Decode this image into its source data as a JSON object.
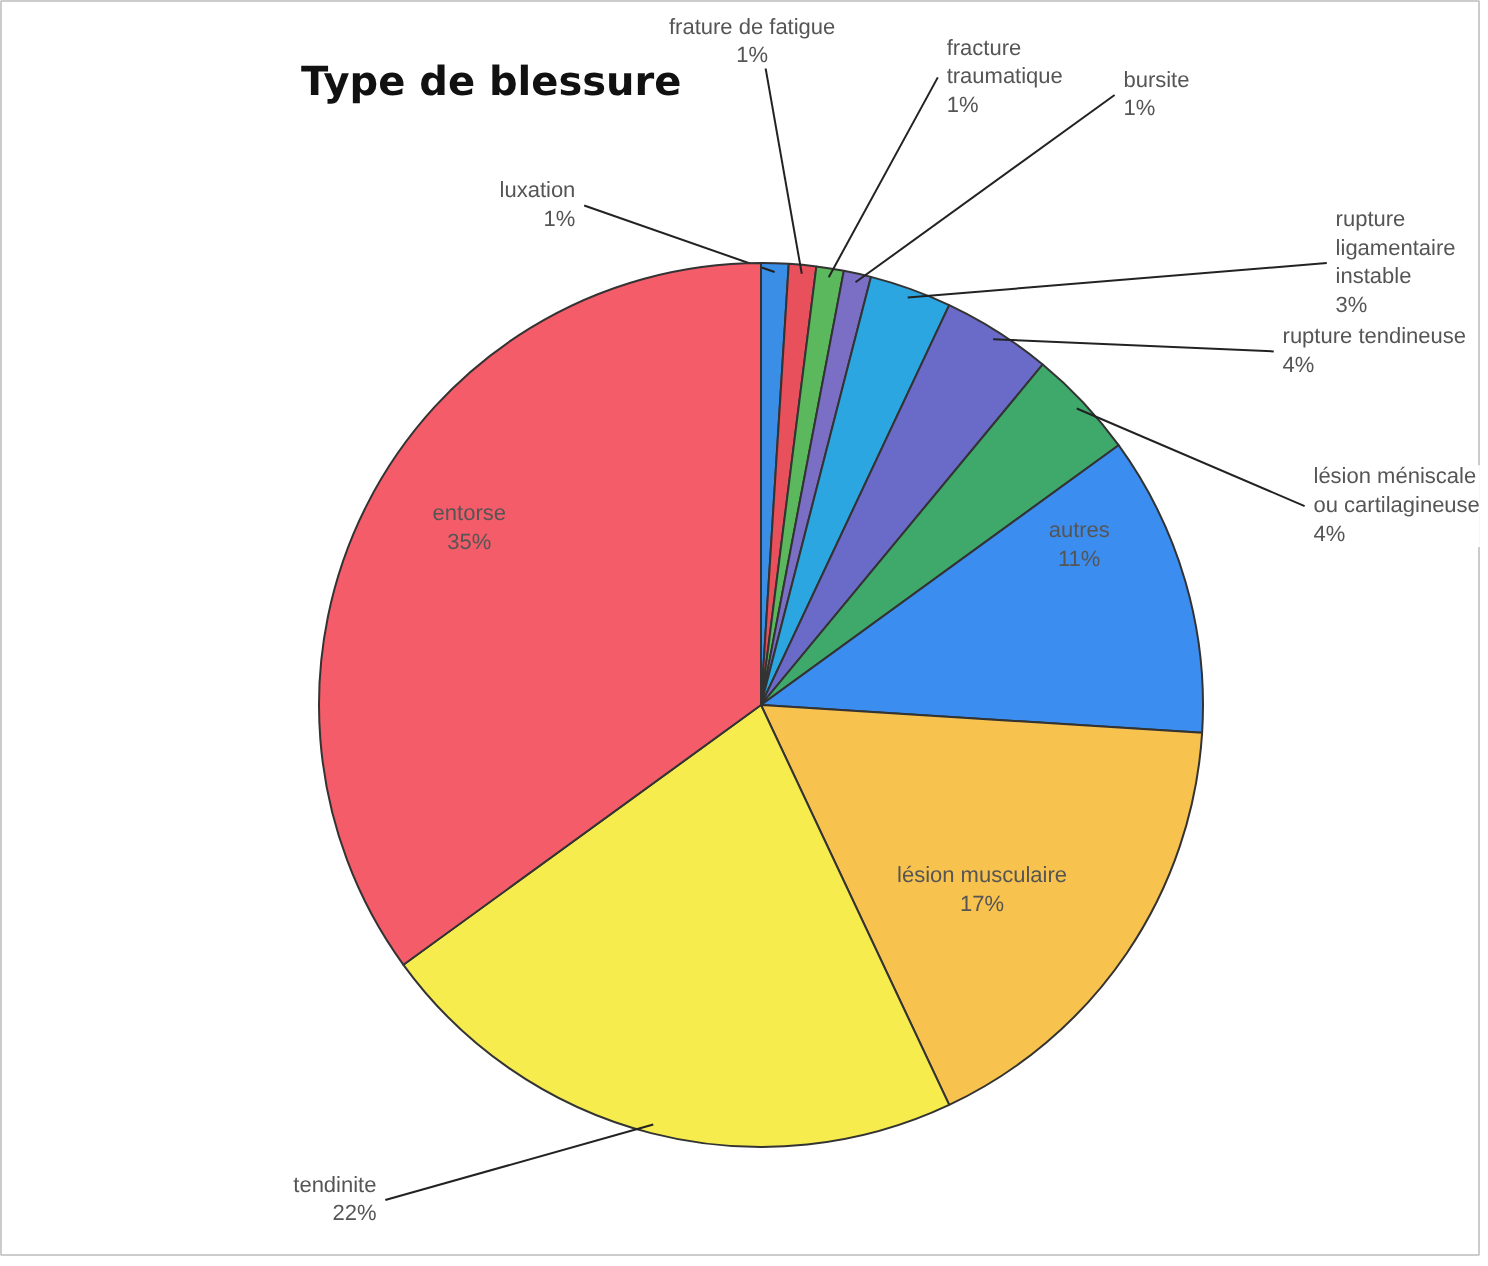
{
  "chart_data": {
    "type": "pie",
    "title": "Type de blessure",
    "categories": [
      "luxation",
      "frature de fatigue",
      "fracture traumatique",
      "bursite",
      "rupture ligamentaire instable",
      "rupture tendineuse",
      "lésion méniscale ou cartilagineuse",
      "autres",
      "lésion musculaire",
      "tendinite",
      "entorse"
    ],
    "values": [
      1,
      1,
      1,
      1,
      3,
      4,
      4,
      11,
      17,
      22,
      35
    ],
    "value_labels": [
      "1%",
      "1%",
      "1%",
      "1%",
      "3%",
      "4%",
      "4%",
      "11%",
      "17%",
      "22%",
      "35%"
    ],
    "colors": [
      "#3a8ee6",
      "#e8505b",
      "#5cb85c",
      "#7a6fc4",
      "#2ba6e0",
      "#6a6ac8",
      "#3fa96b",
      "#3b8ef0",
      "#f7c24d",
      "#f7ec4e",
      "#f35c68"
    ]
  }
}
